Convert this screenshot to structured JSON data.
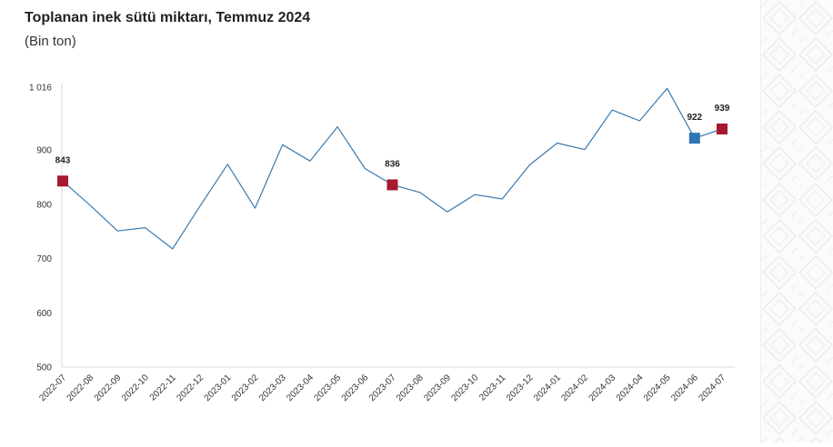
{
  "chart_data": {
    "type": "line",
    "title": "Toplanan inek sütü miktarı, Temmuz 2024",
    "subtitle": "(Bin ton)",
    "xlabel": "",
    "ylabel": "",
    "ylim": [
      500,
      1016
    ],
    "y_ticks": [
      500,
      600,
      700,
      800,
      900,
      1016
    ],
    "y_tick_labels": [
      "500",
      "600",
      "700",
      "800",
      "900",
      "1 016"
    ],
    "grid": false,
    "categories": [
      "2022-07",
      "2022-08",
      "2022-09",
      "2022-10",
      "2022-11",
      "2022-12",
      "2023-01",
      "2023-02",
      "2023-03",
      "2023-04",
      "2023-05",
      "2023-06",
      "2023-07",
      "2023-08",
      "2023-09",
      "2023-10",
      "2023-11",
      "2023-12",
      "2024-01",
      "2024-02",
      "2024-03",
      "2024-04",
      "2024-05",
      "2024-06",
      "2024-07"
    ],
    "series": [
      {
        "values": [
          843,
          798,
          751,
          757,
          718,
          797,
          874,
          793,
          910,
          880,
          943,
          866,
          836,
          822,
          786,
          818,
          810,
          873,
          913,
          901,
          974,
          954,
          1014,
          922,
          939
        ],
        "color": "#3a7ab0"
      }
    ],
    "highlights": [
      {
        "category": "2022-07",
        "value": 843,
        "label": "843",
        "color": "#a6192e"
      },
      {
        "category": "2023-07",
        "value": 836,
        "label": "836",
        "color": "#a6192e"
      },
      {
        "category": "2024-06",
        "value": 922,
        "label": "922",
        "color": "#2e75b6"
      },
      {
        "category": "2024-07",
        "value": 939,
        "label": "939",
        "color": "#a6192e"
      }
    ]
  }
}
